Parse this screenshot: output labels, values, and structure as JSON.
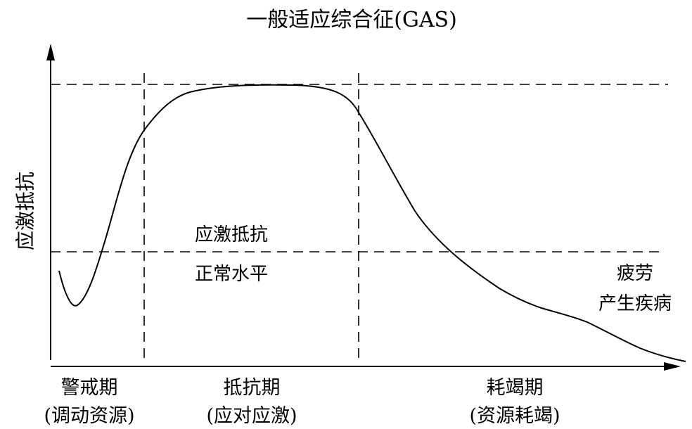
{
  "title": "一般适应综合征(GAS)",
  "y_axis_label": "应激抵抗",
  "annotations": {
    "resistance_line_label": "应激抵抗",
    "normal_level_label": "正常水平",
    "fatigue_label": "疲劳",
    "disease_label": "产生疾病"
  },
  "phases": [
    {
      "name": "警戒期",
      "detail": "(调动资源)"
    },
    {
      "name": "抵抗期",
      "detail": "(应对应激)"
    },
    {
      "name": "耗竭期",
      "detail": "(资源耗竭)"
    }
  ]
}
